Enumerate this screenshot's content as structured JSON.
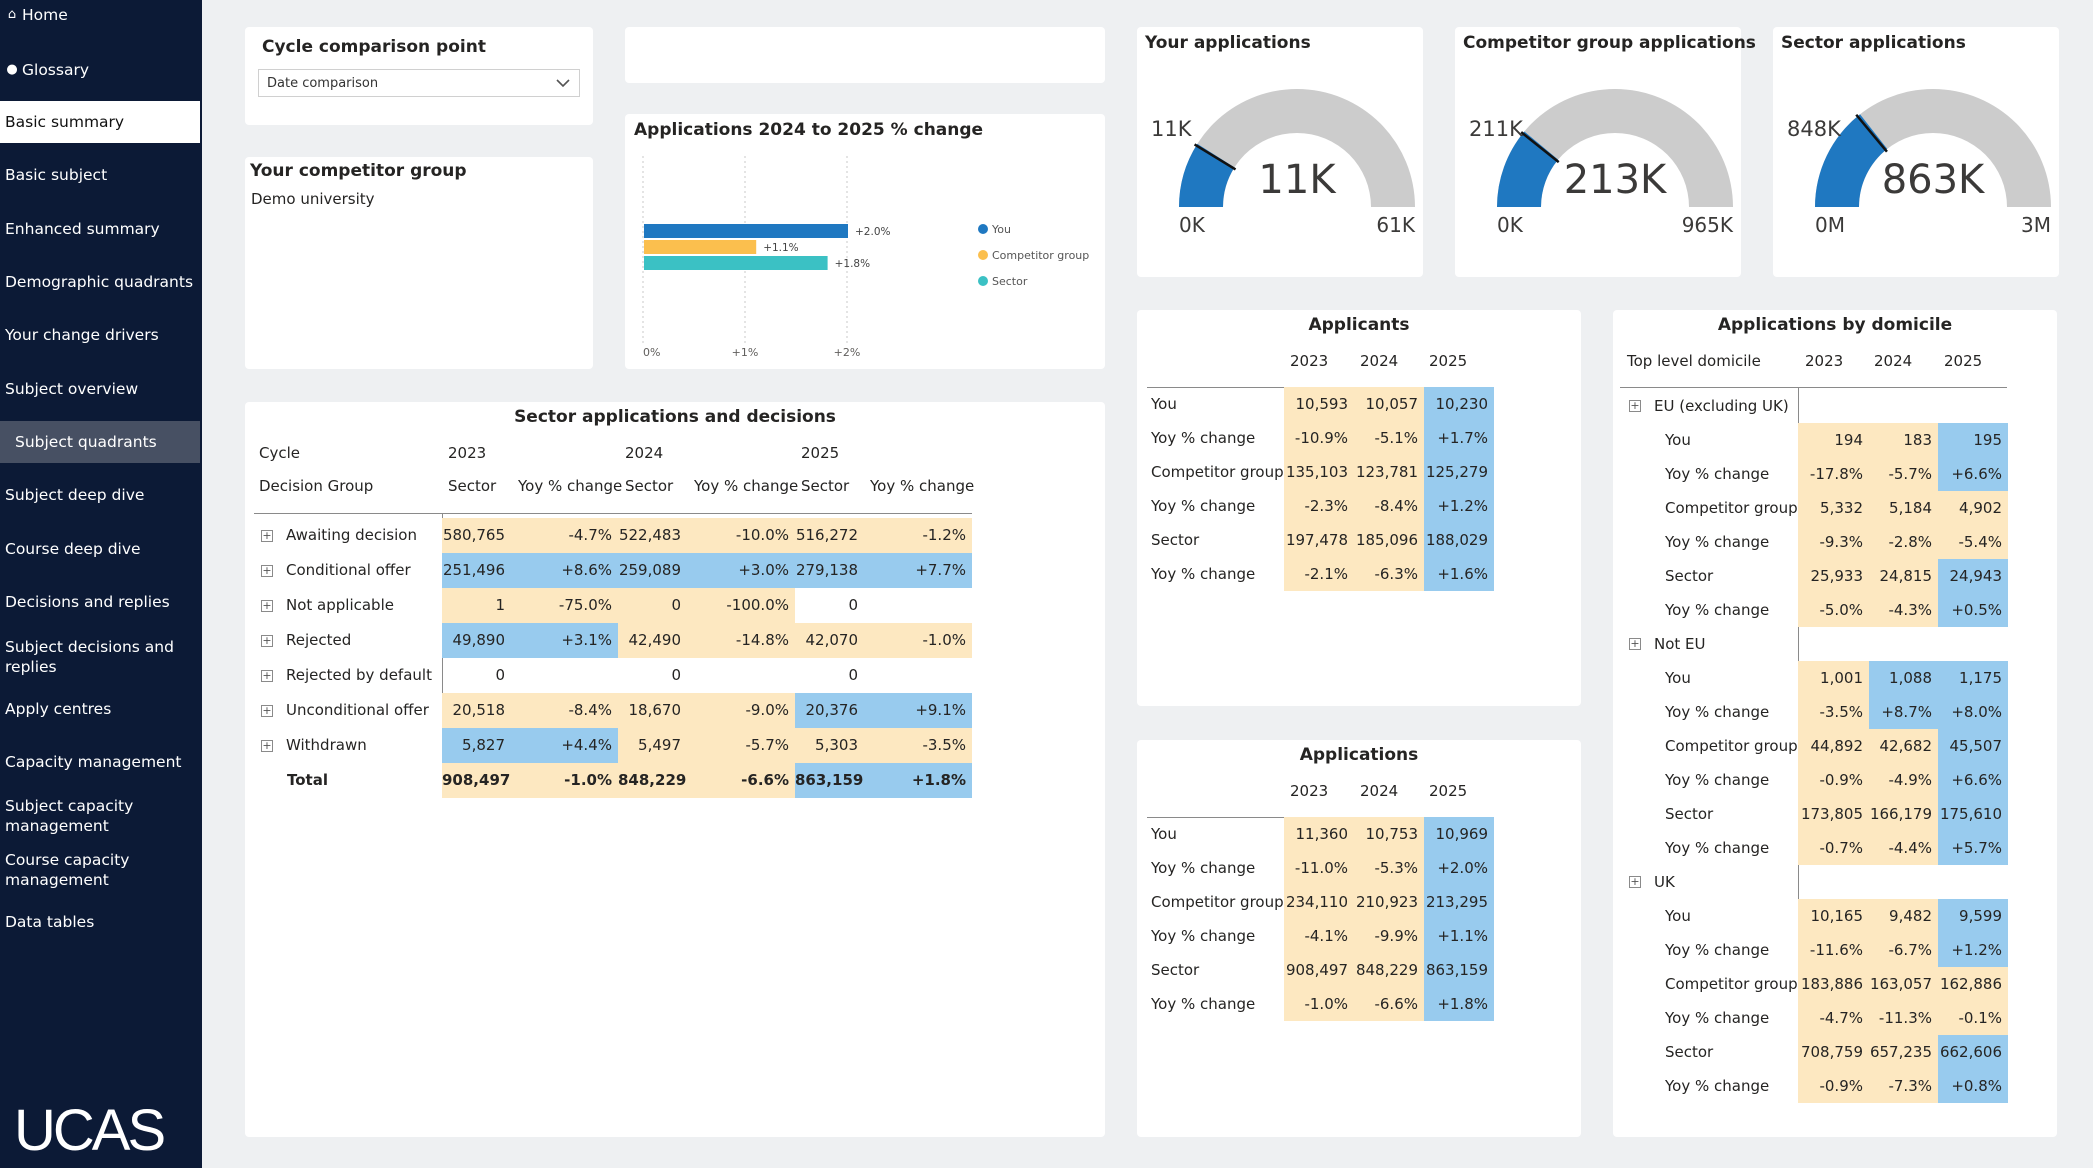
{
  "nav": {
    "home": "Home",
    "glossary": "Glossary",
    "basic_summary": "Basic summary",
    "basic_subject": "Basic subject",
    "enhanced_summary": "Enhanced summary",
    "demographic_quadrants": "Demographic quadrants",
    "your_change_drivers": "Your change drivers",
    "subject_overview": "Subject overview",
    "subject_quadrants": "Subject quadrants",
    "subject_deep_dive": "Subject deep dive",
    "course_deep_dive": "Course deep dive",
    "decisions_and_replies": "Decisions and replies",
    "subject_decisions_and_replies": "Subject decisions and replies",
    "apply_centres": "Apply centres",
    "capacity_management": "Capacity management",
    "subject_capacity_management": "Subject capacity management",
    "course_capacity_management": "Course capacity management",
    "data_tables": "Data tables",
    "logo": "UCAS"
  },
  "cycle_comparison": {
    "title": "Cycle comparison point",
    "value": "Date comparison"
  },
  "competitor_group": {
    "title": "Your competitor group",
    "value": "Demo university"
  },
  "colors": {
    "you": "#1f78c1",
    "competitor": "#fbbf4e",
    "sector": "#3bc1c4",
    "yellow_cell": "#fde8c1",
    "blue_cell": "#98cbee",
    "gauge_track": "#cccccc"
  },
  "chart_data": {
    "type": "bar",
    "orientation": "horizontal",
    "title": "Applications 2024 to 2025 % change",
    "series": [
      {
        "name": "You",
        "value": 2.0,
        "label": "+2.0%"
      },
      {
        "name": "Competitor group",
        "value": 1.1,
        "label": "+1.1%"
      },
      {
        "name": "Sector",
        "value": 1.8,
        "label": "+1.8%"
      }
    ],
    "xticks": [
      "0%",
      "+1%",
      "+2%"
    ],
    "xlim": [
      0,
      2
    ],
    "legend_position": "right"
  },
  "gauges": [
    {
      "title": "Your applications",
      "value_label": "11K",
      "target_label": "11K",
      "min_label": "0K",
      "max_label": "61K",
      "value": 10969,
      "min": 0,
      "max": 61000
    },
    {
      "title": "Competitor group applications",
      "value_label": "213K",
      "target_label": "211K",
      "min_label": "0K",
      "max_label": "965K",
      "value": 213295,
      "min": 0,
      "max": 965000
    },
    {
      "title": "Sector applications",
      "value_label": "863K",
      "target_label": "848K",
      "min_label": "0M",
      "max_label": "3M",
      "value": 863159,
      "min": 0,
      "max": 3000000
    }
  ],
  "sector_table": {
    "title": "Sector applications and decisions",
    "cycle_label": "Cycle",
    "group_label": "Decision Group",
    "years": [
      "2023",
      "2024",
      "2025"
    ],
    "col_sector": "Sector",
    "col_yoy": "Yoy % change",
    "rows": [
      {
        "label": "Awaiting decision",
        "v": [
          "580,765",
          "-4.7%",
          "522,483",
          "-10.0%",
          "516,272",
          "-1.2%"
        ],
        "c": [
          "y",
          "y",
          "y",
          "y",
          "y",
          "y"
        ]
      },
      {
        "label": "Conditional offer",
        "v": [
          "251,496",
          "+8.6%",
          "259,089",
          "+3.0%",
          "279,138",
          "+7.7%"
        ],
        "c": [
          "b",
          "b",
          "b",
          "b",
          "b",
          "b"
        ]
      },
      {
        "label": "Not applicable",
        "v": [
          "1",
          "-75.0%",
          "0",
          "-100.0%",
          "0",
          ""
        ],
        "c": [
          "y",
          "y",
          "y",
          "y",
          "w",
          "w"
        ]
      },
      {
        "label": "Rejected",
        "v": [
          "49,890",
          "+3.1%",
          "42,490",
          "-14.8%",
          "42,070",
          "-1.0%"
        ],
        "c": [
          "b",
          "b",
          "y",
          "y",
          "y",
          "y"
        ]
      },
      {
        "label": "Rejected by default",
        "v": [
          "0",
          "",
          "0",
          "",
          "0",
          ""
        ],
        "c": [
          "w",
          "w",
          "w",
          "w",
          "w",
          "w"
        ]
      },
      {
        "label": "Unconditional offer",
        "v": [
          "20,518",
          "-8.4%",
          "18,670",
          "-9.0%",
          "20,376",
          "+9.1%"
        ],
        "c": [
          "y",
          "y",
          "y",
          "y",
          "b",
          "b"
        ]
      },
      {
        "label": "Withdrawn",
        "v": [
          "5,827",
          "+4.4%",
          "5,497",
          "-5.7%",
          "5,303",
          "-3.5%"
        ],
        "c": [
          "b",
          "b",
          "y",
          "y",
          "y",
          "y"
        ]
      }
    ],
    "total": {
      "label": "Total",
      "v": [
        "908,497",
        "-1.0%",
        "848,229",
        "-6.6%",
        "863,159",
        "+1.8%"
      ],
      "c": [
        "y",
        "y",
        "y",
        "y",
        "b",
        "b"
      ]
    }
  },
  "applicants_table": {
    "title": "Applicants",
    "years": [
      "2023",
      "2024",
      "2025"
    ],
    "rows": [
      {
        "label": "You",
        "v": [
          "10,593",
          "10,057",
          "10,230"
        ]
      },
      {
        "label": "Yoy % change",
        "v": [
          "-10.9%",
          "-5.1%",
          "+1.7%"
        ]
      },
      {
        "label": "Competitor group",
        "v": [
          "135,103",
          "123,781",
          "125,279"
        ]
      },
      {
        "label": "Yoy % change",
        "v": [
          "-2.3%",
          "-8.4%",
          "+1.2%"
        ]
      },
      {
        "label": "Sector",
        "v": [
          "197,478",
          "185,096",
          "188,029"
        ]
      },
      {
        "label": "Yoy % change",
        "v": [
          "-2.1%",
          "-6.3%",
          "+1.6%"
        ]
      }
    ]
  },
  "applications_table": {
    "title": "Applications",
    "years": [
      "2023",
      "2024",
      "2025"
    ],
    "rows": [
      {
        "label": "You",
        "v": [
          "11,360",
          "10,753",
          "10,969"
        ]
      },
      {
        "label": "Yoy % change",
        "v": [
          "-11.0%",
          "-5.3%",
          "+2.0%"
        ]
      },
      {
        "label": "Competitor group",
        "v": [
          "234,110",
          "210,923",
          "213,295"
        ]
      },
      {
        "label": "Yoy % change",
        "v": [
          "-4.1%",
          "-9.9%",
          "+1.1%"
        ]
      },
      {
        "label": "Sector",
        "v": [
          "908,497",
          "848,229",
          "863,159"
        ]
      },
      {
        "label": "Yoy % change",
        "v": [
          "-1.0%",
          "-6.6%",
          "+1.8%"
        ]
      }
    ]
  },
  "domicile_table": {
    "title": "Applications by domicile",
    "col_label": "Top level domicile",
    "years": [
      "2023",
      "2024",
      "2025"
    ],
    "groups": [
      {
        "name": "EU (excluding UK)",
        "rows": [
          {
            "label": "You",
            "v": [
              "194",
              "183",
              "195"
            ],
            "c": [
              "y",
              "y",
              "b"
            ]
          },
          {
            "label": "Yoy % change",
            "v": [
              "-17.8%",
              "-5.7%",
              "+6.6%"
            ],
            "c": [
              "y",
              "y",
              "b"
            ]
          },
          {
            "label": "Competitor group",
            "v": [
              "5,332",
              "5,184",
              "4,902"
            ],
            "c": [
              "y",
              "y",
              "y"
            ]
          },
          {
            "label": "Yoy % change",
            "v": [
              "-9.3%",
              "-2.8%",
              "-5.4%"
            ],
            "c": [
              "y",
              "y",
              "y"
            ]
          },
          {
            "label": "Sector",
            "v": [
              "25,933",
              "24,815",
              "24,943"
            ],
            "c": [
              "y",
              "y",
              "b"
            ]
          },
          {
            "label": "Yoy % change",
            "v": [
              "-5.0%",
              "-4.3%",
              "+0.5%"
            ],
            "c": [
              "y",
              "y",
              "b"
            ]
          }
        ]
      },
      {
        "name": "Not EU",
        "rows": [
          {
            "label": "You",
            "v": [
              "1,001",
              "1,088",
              "1,175"
            ],
            "c": [
              "y",
              "b",
              "b"
            ]
          },
          {
            "label": "Yoy % change",
            "v": [
              "-3.5%",
              "+8.7%",
              "+8.0%"
            ],
            "c": [
              "y",
              "b",
              "b"
            ]
          },
          {
            "label": "Competitor group",
            "v": [
              "44,892",
              "42,682",
              "45,507"
            ],
            "c": [
              "y",
              "y",
              "b"
            ]
          },
          {
            "label": "Yoy % change",
            "v": [
              "-0.9%",
              "-4.9%",
              "+6.6%"
            ],
            "c": [
              "y",
              "y",
              "b"
            ]
          },
          {
            "label": "Sector",
            "v": [
              "173,805",
              "166,179",
              "175,610"
            ],
            "c": [
              "y",
              "y",
              "b"
            ]
          },
          {
            "label": "Yoy % change",
            "v": [
              "-0.7%",
              "-4.4%",
              "+5.7%"
            ],
            "c": [
              "y",
              "y",
              "b"
            ]
          }
        ]
      },
      {
        "name": "UK",
        "rows": [
          {
            "label": "You",
            "v": [
              "10,165",
              "9,482",
              "9,599"
            ],
            "c": [
              "y",
              "y",
              "b"
            ]
          },
          {
            "label": "Yoy % change",
            "v": [
              "-11.6%",
              "-6.7%",
              "+1.2%"
            ],
            "c": [
              "y",
              "y",
              "b"
            ]
          },
          {
            "label": "Competitor group",
            "v": [
              "183,886",
              "163,057",
              "162,886"
            ],
            "c": [
              "y",
              "y",
              "y"
            ]
          },
          {
            "label": "Yoy % change",
            "v": [
              "-4.7%",
              "-11.3%",
              "-0.1%"
            ],
            "c": [
              "y",
              "y",
              "y"
            ]
          },
          {
            "label": "Sector",
            "v": [
              "708,759",
              "657,235",
              "662,606"
            ],
            "c": [
              "y",
              "y",
              "b"
            ]
          },
          {
            "label": "Yoy % change",
            "v": [
              "-0.9%",
              "-7.3%",
              "+0.8%"
            ],
            "c": [
              "y",
              "y",
              "b"
            ]
          }
        ]
      }
    ]
  }
}
